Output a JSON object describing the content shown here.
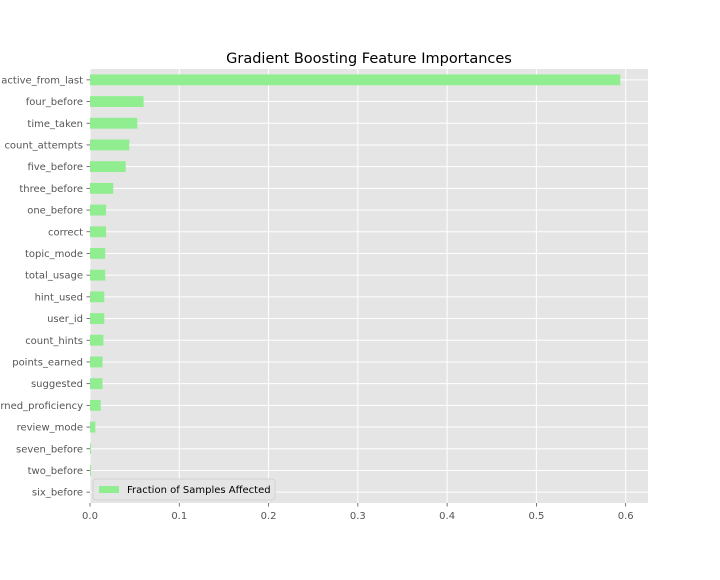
{
  "chart_data": {
    "type": "bar",
    "orientation": "horizontal",
    "title": "Gradient Boosting Feature Importances",
    "xlabel": "",
    "ylabel": "",
    "xlim": [
      0,
      0.625
    ],
    "xticks": [
      0.0,
      0.1,
      0.2,
      0.3,
      0.4,
      0.5,
      0.6
    ],
    "xtick_labels": [
      "0.0",
      "0.1",
      "0.2",
      "0.3",
      "0.4",
      "0.5",
      "0.6"
    ],
    "grid": true,
    "legend_position": "lower-left",
    "categories": [
      "active_from_last",
      "four_before",
      "time_taken",
      "count_attempts",
      "five_before",
      "three_before",
      "one_before",
      "correct",
      "topic_mode",
      "total_usage",
      "hint_used",
      "user_id",
      "count_hints",
      "points_earned",
      "suggested",
      "earned_proficiency",
      "review_mode",
      "seven_before",
      "two_before",
      "six_before"
    ],
    "series": [
      {
        "name": "Fraction of Samples Affected",
        "color": "#90ee90",
        "values": [
          0.594,
          0.06,
          0.053,
          0.044,
          0.04,
          0.026,
          0.018,
          0.018,
          0.017,
          0.017,
          0.016,
          0.016,
          0.015,
          0.014,
          0.014,
          0.012,
          0.006,
          0.001,
          0.001,
          0.0
        ]
      }
    ],
    "colors": {
      "plot_background": "#e5e5e5",
      "grid": "#ffffff",
      "text": "#555555",
      "title": "#000000"
    }
  }
}
